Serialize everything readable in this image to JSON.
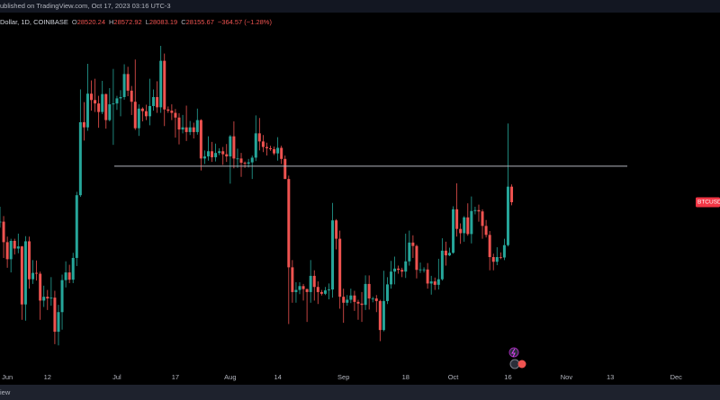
{
  "header": {
    "published": "ublished on TradingView.com, Oct 17, 2023 03:16 UTC-3",
    "symbol": "Dollar, 1D, COINBASE",
    "ohlc": [
      {
        "label": "O",
        "value": "28520.24"
      },
      {
        "label": "H",
        "value": "28572.92"
      },
      {
        "label": "L",
        "value": "28083.19"
      },
      {
        "label": "C",
        "value": "28155.67"
      }
    ],
    "change": "−364.57 (−1.28%)"
  },
  "footer": "iew",
  "chart_data": {
    "type": "candlestick",
    "x": [
      "2023-05-30",
      "2023-05-31",
      "2023-06-01",
      "2023-06-02",
      "2023-06-03",
      "2023-06-04",
      "2023-06-05",
      "2023-06-06",
      "2023-06-07",
      "2023-06-08",
      "2023-06-09",
      "2023-06-10",
      "2023-06-11",
      "2023-06-12",
      "2023-06-13",
      "2023-06-14",
      "2023-06-15",
      "2023-06-16",
      "2023-06-17",
      "2023-06-18",
      "2023-06-19",
      "2023-06-20",
      "2023-06-21",
      "2023-06-22",
      "2023-06-23",
      "2023-06-24",
      "2023-06-25",
      "2023-06-26",
      "2023-06-27",
      "2023-06-28",
      "2023-06-29",
      "2023-06-30",
      "2023-07-01",
      "2023-07-02",
      "2023-07-03",
      "2023-07-04",
      "2023-07-05",
      "2023-07-06",
      "2023-07-07",
      "2023-07-08",
      "2023-07-09",
      "2023-07-10",
      "2023-07-11",
      "2023-07-12",
      "2023-07-13",
      "2023-07-14",
      "2023-07-15",
      "2023-07-16",
      "2023-07-17",
      "2023-07-18",
      "2023-07-19",
      "2023-07-20",
      "2023-07-21",
      "2023-07-22",
      "2023-07-23",
      "2023-07-24",
      "2023-07-25",
      "2023-07-26",
      "2023-07-27",
      "2023-07-28",
      "2023-07-29",
      "2023-07-30",
      "2023-07-31",
      "2023-08-01",
      "2023-08-02",
      "2023-08-03",
      "2023-08-04",
      "2023-08-05",
      "2023-08-06",
      "2023-08-07",
      "2023-08-08",
      "2023-08-09",
      "2023-08-10",
      "2023-08-11",
      "2023-08-12",
      "2023-08-13",
      "2023-08-14",
      "2023-08-15",
      "2023-08-16",
      "2023-08-17",
      "2023-08-18",
      "2023-08-19",
      "2023-08-20",
      "2023-08-21",
      "2023-08-22",
      "2023-08-23",
      "2023-08-24",
      "2023-08-25",
      "2023-08-26",
      "2023-08-27",
      "2023-08-28",
      "2023-08-29",
      "2023-08-30",
      "2023-08-31",
      "2023-09-01",
      "2023-09-02",
      "2023-09-03",
      "2023-09-04",
      "2023-09-05",
      "2023-09-06",
      "2023-09-07",
      "2023-09-08",
      "2023-09-09",
      "2023-09-10",
      "2023-09-11",
      "2023-09-12",
      "2023-09-13",
      "2023-09-14",
      "2023-09-15",
      "2023-09-16",
      "2023-09-17",
      "2023-09-18",
      "2023-09-19",
      "2023-09-20",
      "2023-09-21",
      "2023-09-22",
      "2023-09-23",
      "2023-09-24",
      "2023-09-25",
      "2023-09-26",
      "2023-09-27",
      "2023-09-28",
      "2023-09-29",
      "2023-09-30",
      "2023-10-01",
      "2023-10-02",
      "2023-10-03",
      "2023-10-04",
      "2023-10-05",
      "2023-10-06",
      "2023-10-07",
      "2023-10-08",
      "2023-10-09",
      "2023-10-10",
      "2023-10-11",
      "2023-10-12",
      "2023-10-13",
      "2023-10-14",
      "2023-10-15",
      "2023-10-16",
      "2023-10-17"
    ],
    "open": [
      27700,
      27700,
      27220,
      26820,
      27250,
      27070,
      27120,
      25760,
      27240,
      26350,
      26500,
      26480,
      25850,
      25940,
      25900,
      25920,
      25120,
      25580,
      26330,
      26510,
      26340,
      26850,
      28320,
      30030,
      29910,
      30700,
      30550,
      30470,
      30270,
      30690,
      30080,
      30450,
      30470,
      30590,
      30620,
      31160,
      30770,
      30510,
      29890,
      30350,
      30290,
      30170,
      30410,
      30620,
      30380,
      31470,
      30330,
      30300,
      30250,
      30140,
      29860,
      29910,
      29800,
      29910,
      29800,
      30080,
      29180,
      29230,
      29350,
      29210,
      29310,
      29350,
      29280,
      29230,
      29700,
      29180,
      29180,
      29080,
      29060,
      29090,
      29200,
      29770,
      29580,
      29450,
      29420,
      29400,
      29300,
      29430,
      29170,
      28700,
      26630,
      26050,
      26100,
      26190,
      26120,
      26050,
      26430,
      26170,
      26050,
      26010,
      26090,
      26110,
      27730,
      27300,
      25940,
      25800,
      25870,
      25970,
      25820,
      25780,
      25750,
      26240,
      25900,
      25900,
      25840,
      25160,
      25840,
      26230,
      26530,
      26600,
      26570,
      26530,
      26770,
      27210,
      27130,
      26570,
      26580,
      26580,
      26250,
      26300,
      26220,
      26350,
      27020,
      26910,
      26970,
      27990,
      27530,
      27430,
      27800,
      27410,
      27950,
      27970,
      27940,
      27600,
      27390,
      26870,
      26760,
      26870,
      26860,
      27150,
      28520.24
    ],
    "high": [
      28050,
      27830,
      27350,
      27300,
      27300,
      27420,
      27130,
      27360,
      27350,
      26800,
      26790,
      26530,
      26200,
      26100,
      26400,
      26080,
      25750,
      26460,
      26770,
      26690,
      26970,
      28400,
      30800,
      30500,
      31400,
      31010,
      31050,
      30650,
      31000,
      30700,
      30830,
      31280,
      30650,
      30780,
      31390,
      31330,
      30880,
      31500,
      30450,
      30380,
      30440,
      31050,
      30800,
      30990,
      31820,
      31640,
      30400,
      30450,
      30340,
      30240,
      30200,
      30420,
      30060,
      30020,
      30350,
      30100,
      29370,
      29700,
      29570,
      29530,
      29420,
      29450,
      29520,
      29730,
      30050,
      29410,
      29310,
      29110,
      29170,
      29250,
      30190,
      30130,
      29730,
      29550,
      29480,
      29460,
      29680,
      29480,
      29250,
      28780,
      26800,
      26280,
      26280,
      26240,
      26130,
      26800,
      26560,
      26300,
      26100,
      26170,
      26250,
      28140,
      27760,
      27490,
      26130,
      25980,
      26130,
      26080,
      25870,
      26050,
      26440,
      26440,
      25940,
      25980,
      25870,
      26550,
      26400,
      26780,
      26880,
      26670,
      26620,
      27420,
      27490,
      27380,
      27160,
      26740,
      26630,
      26730,
      26430,
      26390,
      26830,
      27310,
      27230,
      27090,
      28060,
      28600,
      27660,
      27830,
      28130,
      28290,
      28050,
      28100,
      27990,
      27740,
      27480,
      26950,
      27100,
      26980,
      27300,
      30000,
      28572.92
    ],
    "low": [
      27560,
      26850,
      26620,
      26510,
      26930,
      26960,
      25400,
      25380,
      26130,
      26240,
      26320,
      25400,
      25700,
      25630,
      25730,
      24830,
      24800,
      25170,
      26160,
      26260,
      26260,
      26660,
      28280,
      29600,
      29830,
      30300,
      30270,
      29900,
      30220,
      29880,
      30050,
      29500,
      30320,
      30170,
      30560,
      30640,
      30200,
      29850,
      29710,
      30050,
      30080,
      29960,
      30300,
      30250,
      30250,
      29940,
      30250,
      30080,
      29670,
      29510,
      29770,
      29590,
      29730,
      29650,
      29740,
      28900,
      29050,
      29130,
      29100,
      29110,
      29260,
      29030,
      29100,
      28590,
      28950,
      28960,
      28750,
      28960,
      28970,
      28700,
      29120,
      29370,
      29330,
      29250,
      29360,
      29260,
      29130,
      29050,
      28700,
      25300,
      25800,
      25800,
      26000,
      25850,
      25350,
      25800,
      25850,
      25770,
      25970,
      25980,
      25880,
      25920,
      27050,
      25660,
      25330,
      25730,
      25790,
      25610,
      25400,
      25350,
      25630,
      25640,
      25810,
      25580,
      24900,
      25130,
      25770,
      26130,
      26230,
      26480,
      26400,
      26380,
      26670,
      26850,
      26370,
      26500,
      26510,
      26130,
      25990,
      26100,
      26110,
      26320,
      26670,
      26890,
      26950,
      27350,
      27180,
      27230,
      27370,
      27190,
      27870,
      27700,
      27300,
      27330,
      26560,
      26560,
      26680,
      26820,
      26800,
      27120,
      28083.19
    ],
    "close": [
      27700,
      27220,
      26820,
      27250,
      27070,
      27120,
      25760,
      27240,
      26350,
      26500,
      26480,
      25850,
      25940,
      25900,
      25920,
      25120,
      25580,
      26330,
      26510,
      26340,
      26850,
      28320,
      30030,
      29910,
      30700,
      30550,
      30470,
      30270,
      30690,
      30080,
      30450,
      30470,
      30590,
      30620,
      31160,
      30770,
      30510,
      29890,
      30350,
      30290,
      30170,
      30410,
      30620,
      30380,
      31470,
      30330,
      30300,
      30250,
      30140,
      29860,
      29910,
      29800,
      29910,
      29800,
      30080,
      29180,
      29230,
      29350,
      29210,
      29310,
      29350,
      29280,
      29230,
      29700,
      29180,
      29180,
      29080,
      29060,
      29090,
      29200,
      29770,
      29580,
      29450,
      29420,
      29400,
      29300,
      29430,
      29170,
      28700,
      26630,
      26050,
      26100,
      26190,
      26120,
      26050,
      26430,
      26170,
      26050,
      26010,
      26090,
      26110,
      27730,
      27300,
      25940,
      25800,
      25870,
      25970,
      25820,
      25780,
      25750,
      26240,
      25900,
      25900,
      25840,
      25160,
      25840,
      26230,
      26530,
      26600,
      26570,
      26530,
      26770,
      27210,
      27130,
      26570,
      26580,
      26580,
      26250,
      26300,
      26220,
      26350,
      27020,
      26910,
      26970,
      27990,
      27530,
      27430,
      27800,
      27410,
      27950,
      27970,
      27940,
      27600,
      27390,
      26870,
      26760,
      26870,
      26860,
      27150,
      28520.24,
      28155.67
    ],
    "xlim": [
      "2023-05-30",
      "2023-12-13"
    ],
    "xticks": [
      {
        "value": "2023-06-01",
        "label": "Jun"
      },
      12,
      {
        "value": "2023-07-01",
        "label": "Jul"
      },
      17,
      {
        "value": "2023-08-01",
        "label": "Aug"
      },
      14,
      {
        "value": "2023-09-01",
        "label": "Sep"
      },
      18,
      {
        "value": "2023-10-01",
        "label": "Oct"
      },
      16,
      {
        "value": "2023-11-01",
        "label": "Nov"
      },
      13,
      {
        "value": "2023-12-01",
        "label": "Dec"
      }
    ],
    "xtick_dates": [
      "2023-06-01",
      "2023-06-12",
      "2023-07-01",
      "2023-07-17",
      "2023-08-01",
      "2023-08-14",
      "2023-09-01",
      "2023-09-18",
      "2023-10-01",
      "2023-10-16",
      "2023-11-01",
      "2023-11-13",
      "2023-12-01"
    ],
    "ylim": [
      24300,
      32600
    ],
    "up_color": "#26a69a",
    "down_color": "#ef5350",
    "hline": {
      "value": 29000,
      "color": "#b2b5be"
    },
    "price_tag": {
      "label": "BTCUSD",
      "color": "#f23645"
    }
  }
}
